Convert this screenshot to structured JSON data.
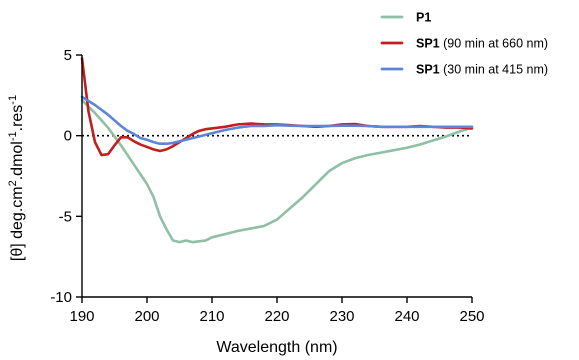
{
  "chart_data": {
    "type": "line",
    "xlabel": "Wavelength (nm)",
    "ylabel": "[θ] deg.cm2.dmol-1.res-1",
    "ylabel_parts": [
      {
        "text": "[θ] deg.cm"
      },
      {
        "text": "2",
        "sup": true
      },
      {
        "text": ".dmol"
      },
      {
        "text": "-1",
        "sup": true
      },
      {
        "text": ".res"
      },
      {
        "text": "-1",
        "sup": true
      }
    ],
    "xlim": [
      190,
      250
    ],
    "ylim": [
      -10,
      5
    ],
    "xticks": [
      190,
      200,
      210,
      220,
      230,
      240,
      250
    ],
    "yticks": [
      -10,
      -5,
      0,
      5
    ],
    "zero_line": "dotted",
    "legend_position": "top-right",
    "series": [
      {
        "name": "P1",
        "label_bold": "P1",
        "label_rest": "",
        "color": "#8fbfa5",
        "x": [
          190,
          192,
          194,
          196,
          198,
          199,
          200,
          201,
          202,
          203,
          204,
          205,
          206,
          207,
          208,
          209,
          210,
          212,
          214,
          216,
          218,
          220,
          222,
          224,
          226,
          228,
          230,
          232,
          234,
          236,
          238,
          240,
          242,
          244,
          246,
          248,
          250
        ],
        "y": [
          2.2,
          1.4,
          0.5,
          -0.6,
          -1.8,
          -2.4,
          -3.0,
          -3.8,
          -5.0,
          -5.8,
          -6.5,
          -6.6,
          -6.5,
          -6.6,
          -6.55,
          -6.5,
          -6.3,
          -6.1,
          -5.9,
          -5.75,
          -5.6,
          -5.2,
          -4.5,
          -3.8,
          -3.0,
          -2.2,
          -1.7,
          -1.4,
          -1.2,
          -1.05,
          -0.9,
          -0.75,
          -0.55,
          -0.3,
          -0.05,
          0.25,
          0.5
        ]
      },
      {
        "name": "SP1 (90 min at 660 nm)",
        "label_bold": "SP1",
        "label_rest": " (90 min at 660 nm)",
        "color": "#c21e1e",
        "x": [
          190,
          191,
          192,
          193,
          194,
          195,
          196,
          197,
          198,
          199,
          200,
          201,
          202,
          203,
          204,
          205,
          206,
          207,
          208,
          209,
          210,
          212,
          214,
          216,
          218,
          220,
          222,
          224,
          226,
          228,
          230,
          232,
          234,
          236,
          238,
          240,
          242,
          244,
          246,
          248,
          250
        ],
        "y": [
          4.8,
          1.5,
          -0.4,
          -1.2,
          -1.15,
          -0.6,
          -0.1,
          -0.1,
          -0.35,
          -0.55,
          -0.7,
          -0.85,
          -0.95,
          -0.85,
          -0.65,
          -0.4,
          -0.15,
          0.1,
          0.3,
          0.4,
          0.45,
          0.55,
          0.7,
          0.75,
          0.7,
          0.7,
          0.65,
          0.6,
          0.55,
          0.6,
          0.7,
          0.72,
          0.6,
          0.55,
          0.55,
          0.55,
          0.6,
          0.55,
          0.5,
          0.5,
          0.45
        ]
      },
      {
        "name": "SP1 (30 min at 415 nm)",
        "label_bold": "SP1",
        "label_rest": " (30 min at 415 nm)",
        "color": "#5c85d6",
        "x": [
          190,
          192,
          194,
          196,
          197,
          198,
          199,
          200,
          201,
          202,
          203,
          204,
          205,
          206,
          207,
          208,
          209,
          210,
          212,
          214,
          216,
          218,
          220,
          222,
          224,
          226,
          228,
          230,
          232,
          234,
          236,
          238,
          240,
          242,
          244,
          246,
          248,
          250
        ],
        "y": [
          2.4,
          1.9,
          1.3,
          0.6,
          0.3,
          0.1,
          -0.15,
          -0.25,
          -0.4,
          -0.5,
          -0.5,
          -0.45,
          -0.35,
          -0.25,
          -0.15,
          -0.05,
          0.05,
          0.15,
          0.35,
          0.5,
          0.6,
          0.6,
          0.65,
          0.62,
          0.6,
          0.6,
          0.6,
          0.62,
          0.62,
          0.6,
          0.55,
          0.55,
          0.55,
          0.55,
          0.55,
          0.55,
          0.55,
          0.55
        ]
      }
    ]
  }
}
